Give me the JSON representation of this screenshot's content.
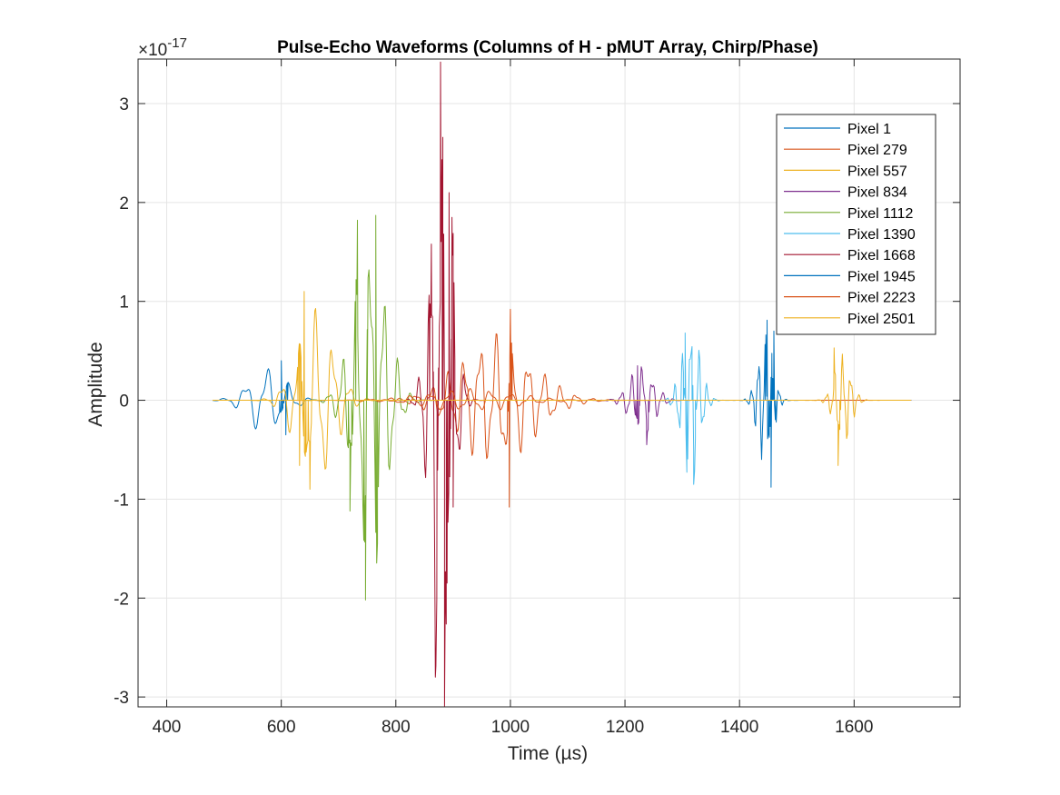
{
  "chart_data": {
    "type": "line",
    "title": "Pulse-Echo Waveforms (Columns of H - pMUT Array, Chirp/Phase)",
    "xlabel": "Time (µs)",
    "ylabel": "Amplitude",
    "y_exponent_label": "×10",
    "y_exponent": "-17",
    "xlim": [
      350,
      1785
    ],
    "ylim": [
      -3.1,
      3.45
    ],
    "xticks": [
      400,
      600,
      800,
      1000,
      1200,
      1400,
      1600
    ],
    "yticks": [
      -3,
      -2,
      -1,
      0,
      1,
      2,
      3
    ],
    "grid": true,
    "legend_location": "top-right",
    "series": [
      {
        "name": "Pixel 1",
        "color": "#0072BD",
        "packets": [
          {
            "center": 575,
            "width": 45,
            "amp": 0.36,
            "period": 38,
            "start": 480,
            "end": 700
          }
        ],
        "points": [
          [
            608,
            -0.35
          ],
          [
            600,
            0.4
          ]
        ]
      },
      {
        "name": "Pixel 279",
        "color": "#D95319",
        "packets": [
          {
            "center": 975,
            "width": 90,
            "amp": 0.7,
            "period": 28,
            "start": 700,
            "end": 1260
          }
        ],
        "points": [
          [
            1000,
            0.92
          ],
          [
            998,
            -1.08
          ]
        ]
      },
      {
        "name": "Pixel 557",
        "color": "#EDB120",
        "packets": [
          {
            "center": 660,
            "width": 45,
            "amp": 0.95,
            "period": 30,
            "start": 540,
            "end": 800
          }
        ],
        "points": [
          [
            640,
            1.1
          ],
          [
            650,
            -0.9
          ],
          [
            632,
            -0.66
          ]
        ]
      },
      {
        "name": "Pixel 834",
        "color": "#7E2F8E",
        "packets": [
          {
            "center": 1230,
            "width": 30,
            "amp": 0.38,
            "period": 18,
            "start": 1120,
            "end": 1340
          }
        ],
        "points": [
          [
            1222,
            0.35
          ],
          [
            1238,
            -0.45
          ]
        ]
      },
      {
        "name": "Pixel 1112",
        "color": "#77AC30",
        "packets": [
          {
            "center": 755,
            "width": 40,
            "amp": 1.8,
            "period": 24,
            "start": 630,
            "end": 880
          }
        ],
        "points": [
          [
            733,
            1.82
          ],
          [
            747,
            -2.02
          ],
          [
            765,
            1.87
          ],
          [
            720,
            -1.12
          ]
        ]
      },
      {
        "name": "Pixel 1390",
        "color": "#4DBEEE",
        "packets": [
          {
            "center": 1315,
            "width": 22,
            "amp": 0.85,
            "period": 14,
            "start": 1240,
            "end": 1400
          }
        ],
        "points": [
          [
            1305,
            0.68
          ],
          [
            1320,
            -0.85
          ]
        ]
      },
      {
        "name": "Pixel 1668",
        "color": "#A2142F",
        "packets": [
          {
            "center": 880,
            "width": 25,
            "amp": 3.2,
            "period": 20,
            "start": 780,
            "end": 980
          }
        ],
        "points": [
          [
            878,
            3.42
          ],
          [
            885,
            -3.1
          ],
          [
            869,
            -2.8
          ],
          [
            893,
            2.1
          ],
          [
            862,
            1.58
          ],
          [
            900,
            -1.08
          ],
          [
            898,
            1.85
          ]
        ]
      },
      {
        "name": "Pixel 1945",
        "color": "#0072BD",
        "packets": [
          {
            "center": 1445,
            "width": 18,
            "amp": 0.75,
            "period": 12,
            "start": 1370,
            "end": 1520
          }
        ],
        "points": [
          [
            1448,
            0.81
          ],
          [
            1455,
            -0.88
          ],
          [
            1460,
            0.7
          ]
        ]
      },
      {
        "name": "Pixel 2223",
        "color": "#D95319",
        "packets": [
          {
            "center": 930,
            "width": 110,
            "amp": 0.12,
            "period": 35,
            "start": 600,
            "end": 1700
          }
        ],
        "points": []
      },
      {
        "name": "Pixel 2501",
        "color": "#EDB120",
        "packets": [
          {
            "center": 1580,
            "width": 20,
            "amp": 0.5,
            "period": 14,
            "start": 1500,
            "end": 1700
          }
        ],
        "points": [
          [
            1565,
            0.53
          ],
          [
            1572,
            -0.66
          ]
        ]
      }
    ]
  }
}
